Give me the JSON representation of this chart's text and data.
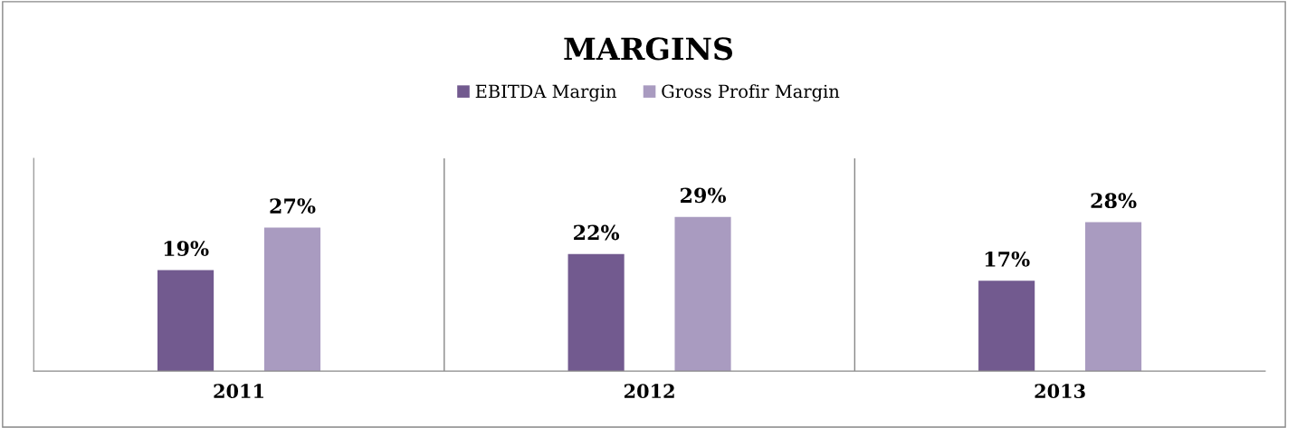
{
  "chart_data": {
    "type": "bar",
    "title": "MARGINS",
    "categories": [
      "2011",
      "2012",
      "2013"
    ],
    "series": [
      {
        "name": "EBITDA Margin",
        "color": "#725a8f",
        "values": [
          19,
          22,
          17
        ],
        "value_labels": [
          "19%",
          "22%",
          "17%"
        ]
      },
      {
        "name": "Gross Profir Margin",
        "color": "#a99bc0",
        "values": [
          27,
          29,
          28
        ],
        "value_labels": [
          "27%",
          "29%",
          "28%"
        ]
      }
    ],
    "ylim": [
      0,
      40
    ],
    "tick_labels": "x",
    "grid": false,
    "legend": "top"
  }
}
